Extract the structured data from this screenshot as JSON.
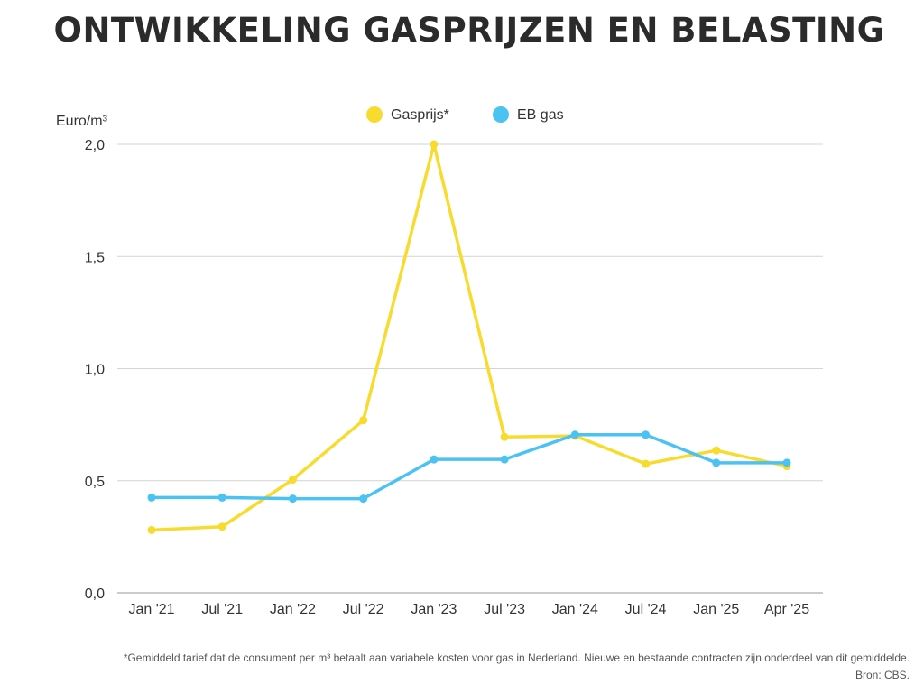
{
  "title": "ONTWIKKELING GASPRIJZEN EN BELASTING",
  "footnote": "*Gemiddeld tarief dat de consument per m³ betaalt aan variabele kosten voor gas in Nederland. Nieuwe en bestaande contracten zijn onderdeel van dit gemiddelde.",
  "source": "Bron: CBS.",
  "chart_data": {
    "type": "line",
    "title": "ONTWIKKELING GASPRIJZEN EN BELASTING",
    "ylabel": "Euro/m³",
    "xlabel": "",
    "ylim": [
      0,
      2.0
    ],
    "yticks": [
      "0,0",
      "0,5",
      "1,0",
      "1,5",
      "2,0"
    ],
    "ytick_values": [
      0,
      0.5,
      1.0,
      1.5,
      2.0
    ],
    "grid": true,
    "legend": "top-center",
    "categories": [
      "Jan '21",
      "Jul '21",
      "Jan '22",
      "Jul '22",
      "Jan '23",
      "Jul '23",
      "Jan '24",
      "Jul '24",
      "Jan '25",
      "Apr '25"
    ],
    "series": [
      {
        "name": "Gasprijs*",
        "color": "#f7dc2f",
        "values": [
          0.28,
          0.295,
          0.505,
          0.77,
          2.0,
          0.695,
          0.7,
          0.575,
          0.635,
          0.565
        ]
      },
      {
        "name": "EB gas",
        "color": "#4cc2f2",
        "values": [
          0.425,
          0.425,
          0.42,
          0.42,
          0.595,
          0.595,
          0.705,
          0.705,
          0.58,
          0.58
        ]
      }
    ]
  }
}
